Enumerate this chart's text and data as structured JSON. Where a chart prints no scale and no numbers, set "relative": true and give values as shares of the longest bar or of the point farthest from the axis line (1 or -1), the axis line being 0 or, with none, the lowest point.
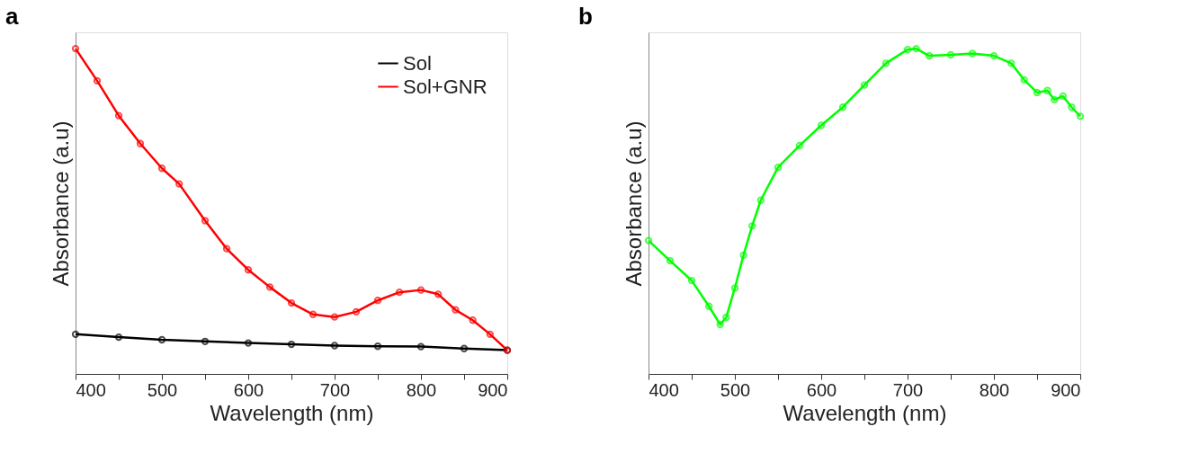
{
  "chart_data": [
    {
      "type": "line",
      "title": "a",
      "xlabel": "Wavelength (nm)",
      "ylabel": "Absorbance (a.u)",
      "relative": true,
      "marker": "circle",
      "line_style": "solid",
      "grid": false,
      "legend": "top right",
      "xlim": [
        400,
        900
      ],
      "xticks": [
        400,
        {
          "value": 450,
          "label": null
        },
        500,
        {
          "value": 550,
          "label": null
        },
        600,
        {
          "value": 650,
          "label": null
        },
        700,
        {
          "value": 750,
          "label": null
        },
        800,
        {
          "value": 850,
          "label": null
        },
        900
      ],
      "series": [
        {
          "name": "Sol",
          "color": "#000000",
          "x": [
            400,
            450,
            500,
            550,
            600,
            650,
            700,
            750,
            800,
            850,
            900
          ],
          "values": [
            0.122,
            0.113,
            0.105,
            0.1,
            0.095,
            0.091,
            0.087,
            0.085,
            0.084,
            0.078,
            0.073
          ]
        },
        {
          "name": "Sol+GNR",
          "color": "#ff0000",
          "x": [
            400,
            425,
            450,
            475,
            500,
            520,
            550,
            575,
            600,
            625,
            650,
            675,
            700,
            725,
            750,
            775,
            800,
            820,
            840,
            860,
            880,
            900
          ],
          "values": [
            1.0,
            0.901,
            0.794,
            0.708,
            0.632,
            0.584,
            0.471,
            0.385,
            0.32,
            0.267,
            0.218,
            0.183,
            0.175,
            0.191,
            0.226,
            0.251,
            0.258,
            0.245,
            0.197,
            0.165,
            0.122,
            0.073
          ]
        }
      ]
    },
    {
      "type": "line",
      "title": "b",
      "xlabel": "Wavelength (nm)",
      "ylabel": "Absorbance (a.u)",
      "relative": true,
      "marker": "circle",
      "line_style": "solid",
      "grid": false,
      "xlim": [
        400,
        900
      ],
      "xticks": [
        400,
        {
          "value": 450,
          "label": null
        },
        500,
        {
          "value": 550,
          "label": null
        },
        600,
        {
          "value": 650,
          "label": null
        },
        700,
        {
          "value": 750,
          "label": null
        },
        800,
        {
          "value": 850,
          "label": null
        },
        900
      ],
      "series": [
        {
          "color": "#00ff00",
          "x": [
            400,
            425,
            450,
            470,
            483,
            490,
            500,
            510,
            520,
            530,
            550,
            575,
            600,
            625,
            650,
            675,
            700,
            710,
            725,
            750,
            775,
            800,
            820,
            835,
            850,
            862,
            870,
            880,
            890,
            900
          ],
          "values": [
            0.41,
            0.348,
            0.287,
            0.208,
            0.152,
            0.174,
            0.264,
            0.365,
            0.455,
            0.534,
            0.635,
            0.702,
            0.764,
            0.82,
            0.888,
            0.955,
            0.997,
            1.0,
            0.978,
            0.981,
            0.985,
            0.978,
            0.955,
            0.904,
            0.865,
            0.871,
            0.843,
            0.854,
            0.82,
            0.792
          ]
        }
      ]
    }
  ]
}
